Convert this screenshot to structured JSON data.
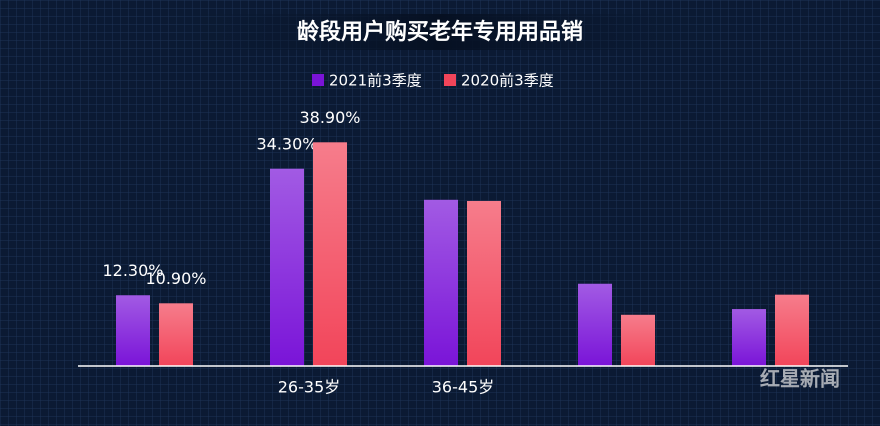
{
  "chart_data": {
    "type": "bar",
    "title": "龄段用户购买老年专用用品销",
    "categories": [
      null,
      "26-35岁",
      "36-45岁",
      null,
      null
    ],
    "series": [
      {
        "name": "2021前3季度",
        "color": "#7a14d8",
        "values": [
          12.3,
          34.3,
          28.9,
          14.3,
          9.9
        ],
        "value_labels": [
          "12.30%",
          "34.30%",
          null,
          null,
          null
        ]
      },
      {
        "name": "2020前3季度",
        "color": "#f2455a",
        "values": [
          10.9,
          38.9,
          28.7,
          8.9,
          12.4
        ],
        "value_labels": [
          "10.90%",
          "38.90%",
          null,
          null,
          null
        ]
      }
    ],
    "ylim": [
      0,
      40
    ],
    "watermark": "红星新闻"
  }
}
